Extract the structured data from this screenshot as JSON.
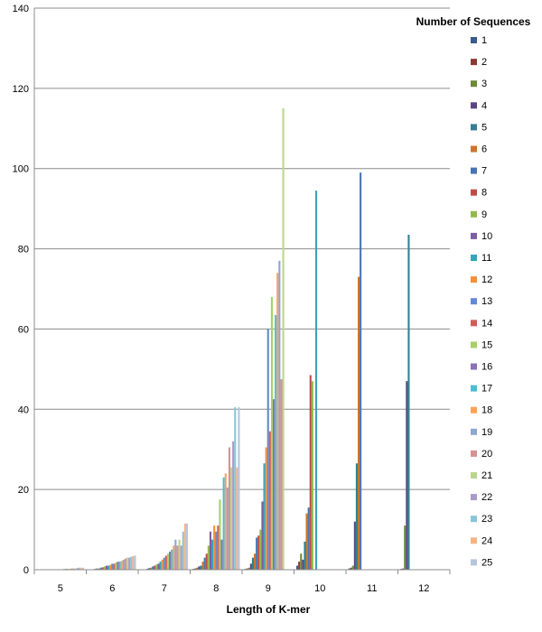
{
  "chart_data": {
    "type": "bar",
    "title": "",
    "xlabel": "Length of K-mer",
    "ylabel": "",
    "ylim": [
      0,
      140
    ],
    "yticks": [
      0,
      20,
      40,
      60,
      80,
      100,
      120,
      140
    ],
    "grid": true,
    "legend_title": "Number of Sequences",
    "legend_position": "right",
    "categories": [
      "5",
      "6",
      "7",
      "8",
      "9",
      "10",
      "11",
      "12"
    ],
    "series": [
      {
        "name": "1",
        "color": "#3c5a8c",
        "values": [
          0,
          0,
          0,
          0.2,
          0.2,
          1,
          0.3,
          0.2
        ]
      },
      {
        "name": "2",
        "color": "#8c3a36",
        "values": [
          0,
          0,
          0,
          0.3,
          0.3,
          2,
          0.5,
          0.3
        ]
      },
      {
        "name": "3",
        "color": "#6d8a36",
        "values": [
          0,
          0,
          0,
          0.5,
          0.5,
          4,
          1,
          11
        ]
      },
      {
        "name": "4",
        "color": "#5a4682",
        "values": [
          0,
          0.2,
          0.2,
          0.8,
          1.5,
          2.5,
          12,
          47
        ]
      },
      {
        "name": "5",
        "color": "#357f90",
        "values": [
          0,
          0.3,
          0.4,
          1,
          3,
          7,
          26.5,
          83.5
        ]
      },
      {
        "name": "6",
        "color": "#c7772f",
        "values": [
          0,
          0.3,
          0.5,
          2,
          4,
          14,
          73,
          0
        ]
      },
      {
        "name": "7",
        "color": "#4a74b4",
        "values": [
          0,
          0.5,
          0.8,
          3,
          8,
          15.5,
          99,
          0
        ]
      },
      {
        "name": "8",
        "color": "#bc4b47",
        "values": [
          0,
          0.6,
          1,
          4,
          8.5,
          48.5,
          0,
          0
        ]
      },
      {
        "name": "9",
        "color": "#93b94d",
        "values": [
          0,
          0.8,
          1.3,
          6,
          10,
          47,
          0,
          0
        ]
      },
      {
        "name": "10",
        "color": "#7a5fa3",
        "values": [
          0,
          1,
          1.5,
          9.5,
          17,
          0,
          0,
          0
        ]
      },
      {
        "name": "11",
        "color": "#3aa2ba",
        "values": [
          0,
          1,
          2,
          7.5,
          26.5,
          94.5,
          0,
          0
        ]
      },
      {
        "name": "12",
        "color": "#f58f38",
        "values": [
          0.1,
          1.2,
          2.5,
          11,
          30.5,
          0,
          0,
          0
        ]
      },
      {
        "name": "13",
        "color": "#6588cf",
        "values": [
          0.1,
          1.5,
          3,
          9.5,
          60,
          0,
          0,
          0
        ]
      },
      {
        "name": "14",
        "color": "#d05d59",
        "values": [
          0.1,
          1.5,
          3.5,
          11,
          34.5,
          0,
          0,
          0
        ]
      },
      {
        "name": "15",
        "color": "#a9cf68",
        "values": [
          0.2,
          1.8,
          4,
          17.5,
          68,
          0,
          0,
          0
        ]
      },
      {
        "name": "16",
        "color": "#8b73b6",
        "values": [
          0.2,
          2,
          4.5,
          7.5,
          42.5,
          0,
          0,
          0
        ]
      },
      {
        "name": "17",
        "color": "#4ebcd3",
        "values": [
          0.2,
          2,
          5,
          23,
          63.5,
          0,
          0,
          0
        ]
      },
      {
        "name": "18",
        "color": "#f8a25d",
        "values": [
          0.2,
          2.2,
          6,
          24,
          74,
          0,
          0,
          0
        ]
      },
      {
        "name": "19",
        "color": "#8fa6cf",
        "values": [
          0.3,
          2.5,
          7.5,
          20.5,
          77,
          0,
          0,
          0
        ]
      },
      {
        "name": "20",
        "color": "#d69391",
        "values": [
          0.3,
          2.8,
          6,
          30.5,
          47.5,
          0,
          0,
          0
        ]
      },
      {
        "name": "21",
        "color": "#bcd58e",
        "values": [
          0.3,
          3,
          7.5,
          25.5,
          115,
          0,
          0,
          0
        ]
      },
      {
        "name": "22",
        "color": "#aa9bc8",
        "values": [
          0.4,
          3,
          6,
          32,
          0,
          0,
          0,
          0
        ]
      },
      {
        "name": "23",
        "color": "#88c6d6",
        "values": [
          0.5,
          3.2,
          9.5,
          40.5,
          0,
          0,
          0,
          0
        ]
      },
      {
        "name": "24",
        "color": "#f5b587",
        "values": [
          0.5,
          3.4,
          11.5,
          25.5,
          0,
          0,
          0,
          0
        ]
      },
      {
        "name": "25",
        "color": "#b7c4de",
        "values": [
          0.5,
          3.5,
          11.5,
          40.5,
          0,
          0,
          0,
          0
        ]
      }
    ]
  }
}
